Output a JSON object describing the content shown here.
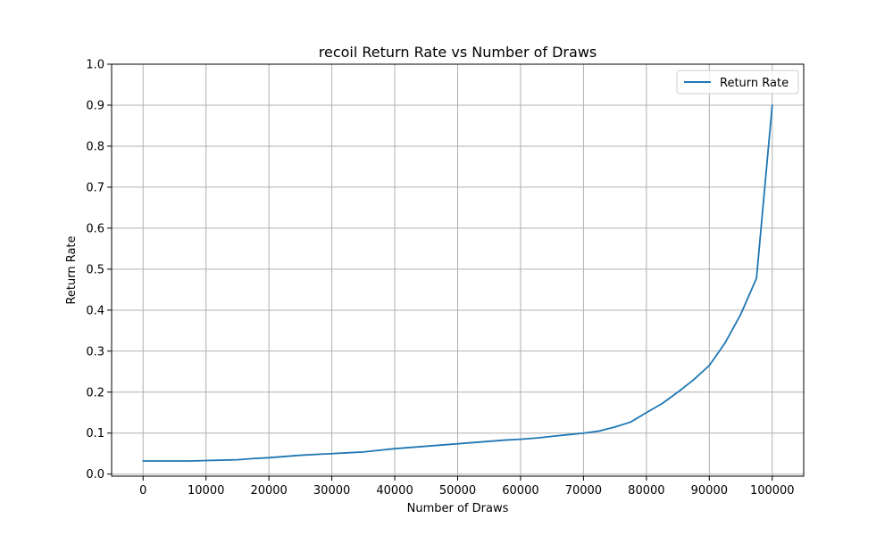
{
  "chart_data": {
    "type": "line",
    "title": "recoil Return Rate vs Number of Draws",
    "xlabel": "Number of Draws",
    "ylabel": "Return Rate",
    "xlim": [
      -5000,
      105000
    ],
    "ylim": [
      -0.005,
      1.0
    ],
    "xticks": [
      0,
      10000,
      20000,
      30000,
      40000,
      50000,
      60000,
      70000,
      80000,
      90000,
      100000
    ],
    "xtick_labels": [
      "0",
      "10000",
      "20000",
      "30000",
      "40000",
      "50000",
      "60000",
      "70000",
      "80000",
      "90000",
      "100000"
    ],
    "yticks": [
      0.0,
      0.1,
      0.2,
      0.3,
      0.4,
      0.5,
      0.6,
      0.7,
      0.8,
      0.9,
      1.0
    ],
    "ytick_labels": [
      "0.0",
      "0.1",
      "0.2",
      "0.3",
      "0.4",
      "0.5",
      "0.6",
      "0.7",
      "0.8",
      "0.9",
      "1.0"
    ],
    "grid": true,
    "legend_position": "top-right",
    "series": [
      {
        "name": "Return Rate",
        "color": "#1f77b4",
        "x": [
          0,
          2500,
          5000,
          7500,
          10000,
          12500,
          15000,
          17500,
          20000,
          22500,
          25000,
          27500,
          30000,
          32500,
          35000,
          37500,
          40000,
          42500,
          45000,
          47500,
          50000,
          52500,
          55000,
          57500,
          60000,
          62500,
          65000,
          67500,
          70000,
          72500,
          75000,
          77500,
          80000,
          82500,
          85000,
          87500,
          90000,
          92500,
          95000,
          97500,
          100000
        ],
        "y": [
          0.032,
          0.032,
          0.032,
          0.032,
          0.033,
          0.034,
          0.035,
          0.038,
          0.04,
          0.043,
          0.046,
          0.048,
          0.05,
          0.052,
          0.054,
          0.058,
          0.062,
          0.065,
          0.068,
          0.071,
          0.074,
          0.077,
          0.08,
          0.083,
          0.085,
          0.088,
          0.092,
          0.096,
          0.1,
          0.105,
          0.115,
          0.127,
          0.15,
          0.172,
          0.2,
          0.23,
          0.265,
          0.32,
          0.39,
          0.478,
          0.9
        ]
      }
    ]
  }
}
